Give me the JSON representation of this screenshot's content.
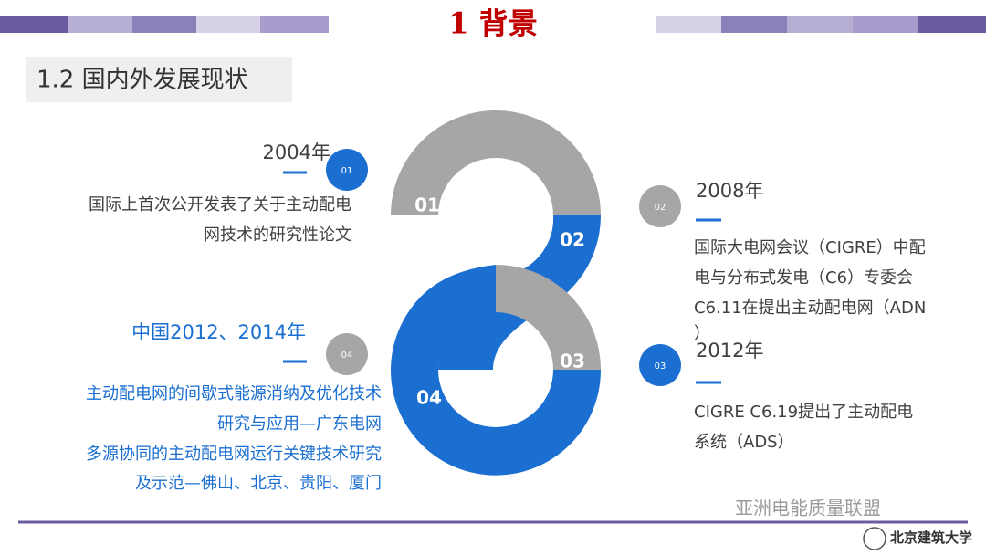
{
  "header": {
    "title": "1  背景"
  },
  "section": {
    "title": "1.2  国内外发展现状"
  },
  "figure": {
    "labels": [
      "01",
      "02",
      "03",
      "04"
    ]
  },
  "items": [
    {
      "badge": "01",
      "year": "2004年",
      "lines": [
        "国际上首次公开发表了关于主动配电",
        "网技术的研究性论文"
      ]
    },
    {
      "badge": "02",
      "year": "2008年",
      "lines": [
        "国际大电网会议（CIGRE）中配",
        "电与分布式发电（C6）专委会",
        "C6.11在提出主动配电网（ADN",
        "）"
      ]
    },
    {
      "badge": "03",
      "year": "2012年",
      "lines": [
        "CIGRE C6.19提出了主动配电",
        "系统（ADS）"
      ]
    },
    {
      "badge": "04",
      "year": "中国2012、2014年",
      "lines": [
        "主动配电网的间歇式能源消纳及优化技术",
        "研究与应用—广东电网",
        "多源协同的主动配电网运行关键技术研究",
        "及示范—佛山、北京、贵阳、厦门"
      ]
    }
  ],
  "footer": {
    "watermark": "亚洲电能质量联盟",
    "logo": "北京建筑大学"
  }
}
